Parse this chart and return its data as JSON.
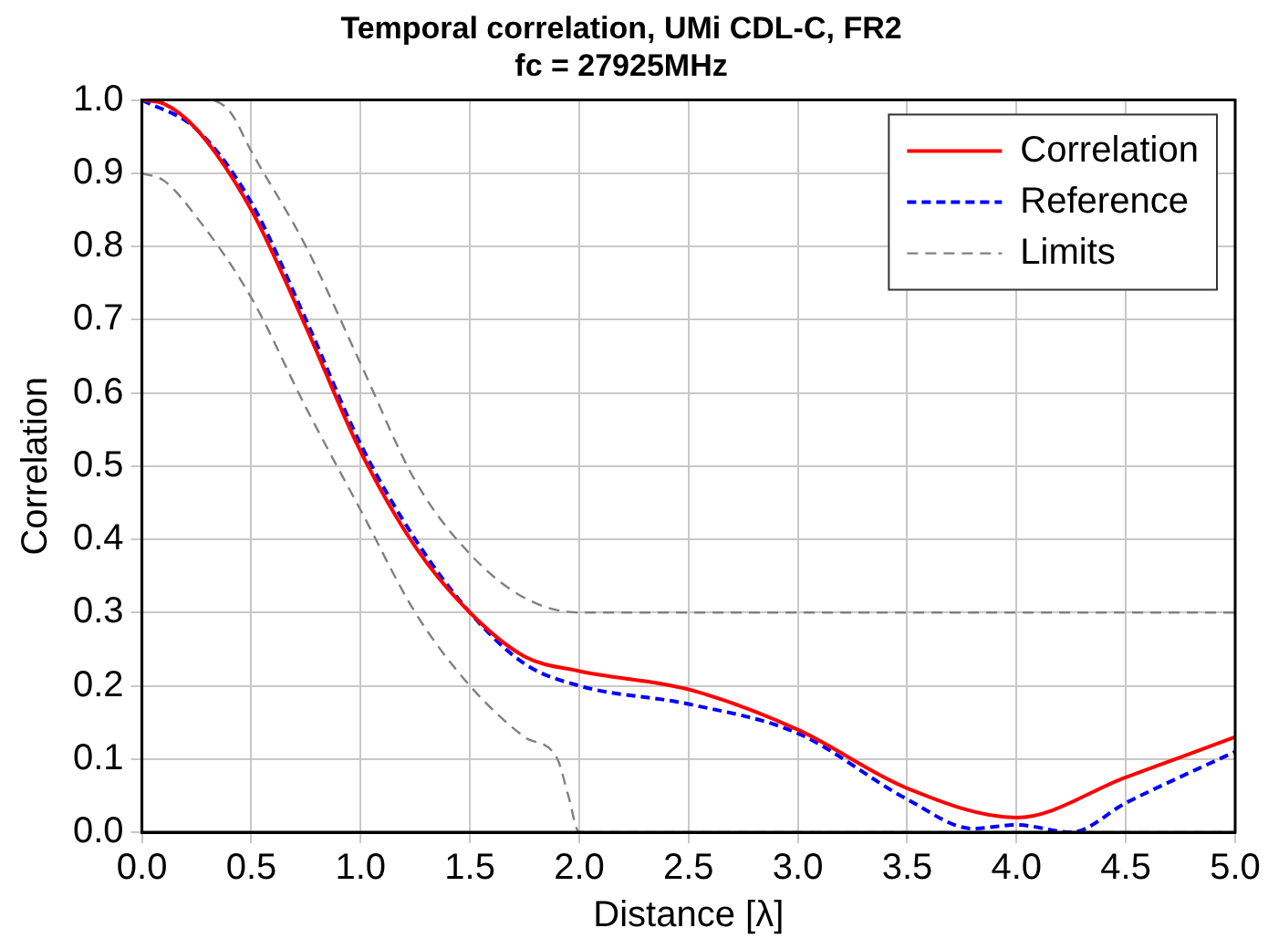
{
  "chart_data": {
    "type": "line",
    "title": "Temporal correlation, UMi CDL-C, FR2",
    "subtitle": "fc = 27925MHz",
    "xlabel": "Distance [λ]",
    "ylabel": "Correlation",
    "xlim": [
      0,
      5
    ],
    "xticks": [
      {
        "value": 0,
        "label": "0.0"
      },
      {
        "value": 0.5,
        "label": "0.5"
      },
      {
        "value": 1,
        "label": "1.0"
      },
      {
        "value": 1.5,
        "label": "1.5"
      },
      {
        "value": 2,
        "label": "2.0"
      },
      {
        "value": 2.5,
        "label": "2.5"
      },
      {
        "value": 3,
        "label": "3.0"
      },
      {
        "value": 3.5,
        "label": "3.5"
      },
      {
        "value": 4,
        "label": "4.0"
      },
      {
        "value": 4.5,
        "label": "4.5"
      },
      {
        "value": 5,
        "label": "5.0"
      }
    ],
    "ylim": [
      0,
      1
    ],
    "yticks": [
      {
        "value": 0,
        "label": "0.0"
      },
      {
        "value": 0.1,
        "label": "0.1"
      },
      {
        "value": 0.2,
        "label": "0.2"
      },
      {
        "value": 0.3,
        "label": "0.3"
      },
      {
        "value": 0.4,
        "label": "0.4"
      },
      {
        "value": 0.5,
        "label": "0.5"
      },
      {
        "value": 0.6,
        "label": "0.6"
      },
      {
        "value": 0.7,
        "label": "0.7"
      },
      {
        "value": 0.8,
        "label": "0.8"
      },
      {
        "value": 0.9,
        "label": "0.9"
      },
      {
        "value": 1,
        "label": "1.0"
      }
    ],
    "grid": true,
    "legend": "top right",
    "marker": "none",
    "series": [
      {
        "name": "Correlation",
        "color": "#ff0000",
        "line_style": "solid",
        "x": [
          0,
          0.1,
          0.25,
          0.5,
          0.75,
          1.0,
          1.25,
          1.5,
          1.75,
          2.0,
          2.5,
          3.0,
          3.5,
          4.0,
          4.5,
          5.0
        ],
        "values": [
          1.0,
          0.995,
          0.96,
          0.85,
          0.69,
          0.52,
          0.39,
          0.3,
          0.24,
          0.22,
          0.195,
          0.14,
          0.06,
          0.02,
          0.075,
          0.13
        ]
      },
      {
        "name": "Reference",
        "color": "#0000ff",
        "line_style": "dashed",
        "x": [
          0,
          0.25,
          0.5,
          0.75,
          1.0,
          1.25,
          1.5,
          1.75,
          2.0,
          2.5,
          3.0,
          3.5,
          3.8,
          4.0,
          4.25,
          4.5,
          5.0
        ],
        "values": [
          1.0,
          0.96,
          0.86,
          0.7,
          0.53,
          0.4,
          0.3,
          0.23,
          0.2,
          0.175,
          0.135,
          0.045,
          0.005,
          0.01,
          0.0,
          0.04,
          0.11
        ]
      },
      {
        "name": "Limits",
        "color": "#808080",
        "line_style": "dashed",
        "x": [
          0,
          0.3,
          0.4,
          0.5,
          0.75,
          1.0,
          1.25,
          1.5,
          1.75,
          2.0,
          5.0
        ],
        "values": [
          1.0,
          1.0,
          0.985,
          0.93,
          0.8,
          0.64,
          0.48,
          0.38,
          0.32,
          0.3,
          0.3
        ]
      },
      {
        "color": "#808080",
        "line_style": "dashed",
        "x": [
          0,
          0.1,
          0.25,
          0.5,
          0.75,
          1.0,
          1.25,
          1.5,
          1.75,
          1.9,
          1.95,
          2.0,
          5.0
        ],
        "values": [
          0.9,
          0.89,
          0.84,
          0.73,
          0.58,
          0.44,
          0.3,
          0.2,
          0.13,
          0.1,
          0.05,
          0.0,
          0.0
        ]
      }
    ]
  }
}
